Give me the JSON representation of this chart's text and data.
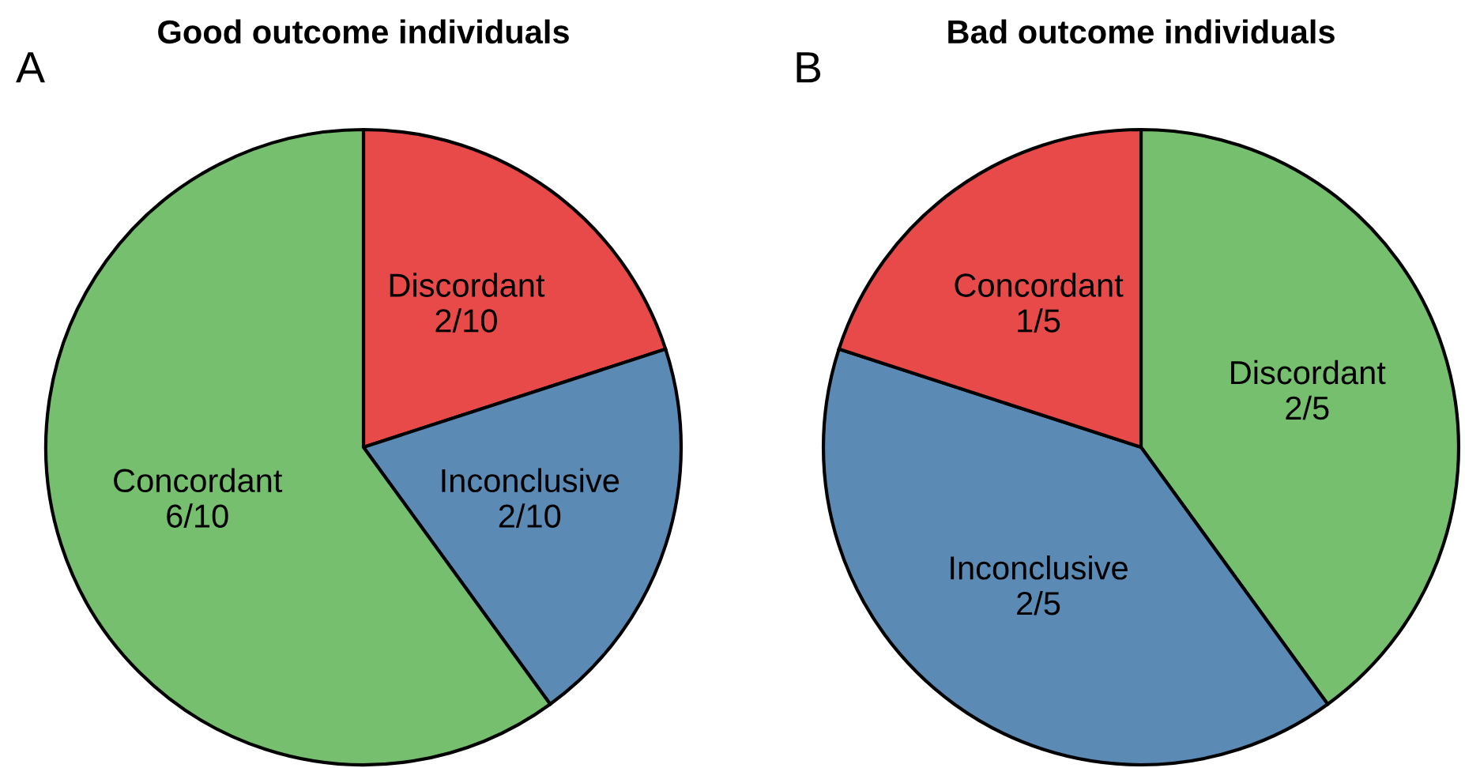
{
  "chart_data": [
    {
      "type": "pie",
      "title": "Good outcome individuals",
      "annotations": [
        "A"
      ],
      "categories": [
        "Discordant",
        "Inconclusive",
        "Concordant"
      ],
      "values": [
        0.2,
        0.2,
        0.6
      ],
      "value_labels": [
        "2/10",
        "2/10",
        "6/10"
      ],
      "colors": [
        "#e84a4a",
        "#5b8ab5",
        "#75bf6e"
      ],
      "legend": false
    },
    {
      "type": "pie",
      "title": "Bad outcome individuals",
      "annotations": [
        "B"
      ],
      "categories": [
        "Discordant",
        "Inconclusive",
        "Concordant"
      ],
      "values": [
        0.4,
        0.4,
        0.2
      ],
      "value_labels": [
        "2/5",
        "2/5",
        "1/5"
      ],
      "colors": [
        "#75bf6e",
        "#5b8ab5",
        "#e84a4a"
      ],
      "legend": false
    }
  ]
}
